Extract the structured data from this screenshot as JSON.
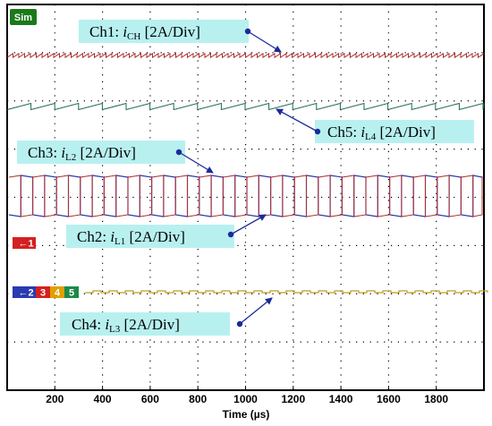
{
  "badge": {
    "label": "Sim",
    "color": "#1a7a1a"
  },
  "chart_data": {
    "type": "line",
    "xlabel": "Time (µs)",
    "xlim": [
      0,
      2000
    ],
    "xticks": [
      200,
      400,
      600,
      800,
      1000,
      1200,
      1400,
      1600,
      1800
    ],
    "grid": true,
    "series": [
      {
        "name": "Ch1",
        "label_prefix": "Ch1: ",
        "var": "i",
        "sub": "CH",
        "scale": " [2A/Div]",
        "color": "#b03030"
      },
      {
        "name": "Ch2",
        "label_prefix": "Ch2: ",
        "var": "i",
        "sub": "L1",
        "scale": " [2A/Div]",
        "color": "#b03030"
      },
      {
        "name": "Ch3",
        "label_prefix": "Ch3: ",
        "var": "i",
        "sub": "L2",
        "scale": " [2A/Div]",
        "color": "#2a3ab0"
      },
      {
        "name": "Ch4",
        "label_prefix": "Ch4: ",
        "var": "i",
        "sub": "L3",
        "scale": " [2A/Div]",
        "color": "#b8a020"
      },
      {
        "name": "Ch5",
        "label_prefix": "Ch5: ",
        "var": "i",
        "sub": "L4",
        "scale": " [2A/Div]",
        "color": "#1f6a4a"
      }
    ],
    "markers": [
      {
        "label": "1",
        "color": "#d42020"
      },
      {
        "label": "2",
        "color": "#2a3ab0"
      },
      {
        "label": "3",
        "color": "#d42020"
      },
      {
        "label": "4",
        "color": "#e0a000"
      },
      {
        "label": "5",
        "color": "#1a8a4a"
      }
    ]
  }
}
